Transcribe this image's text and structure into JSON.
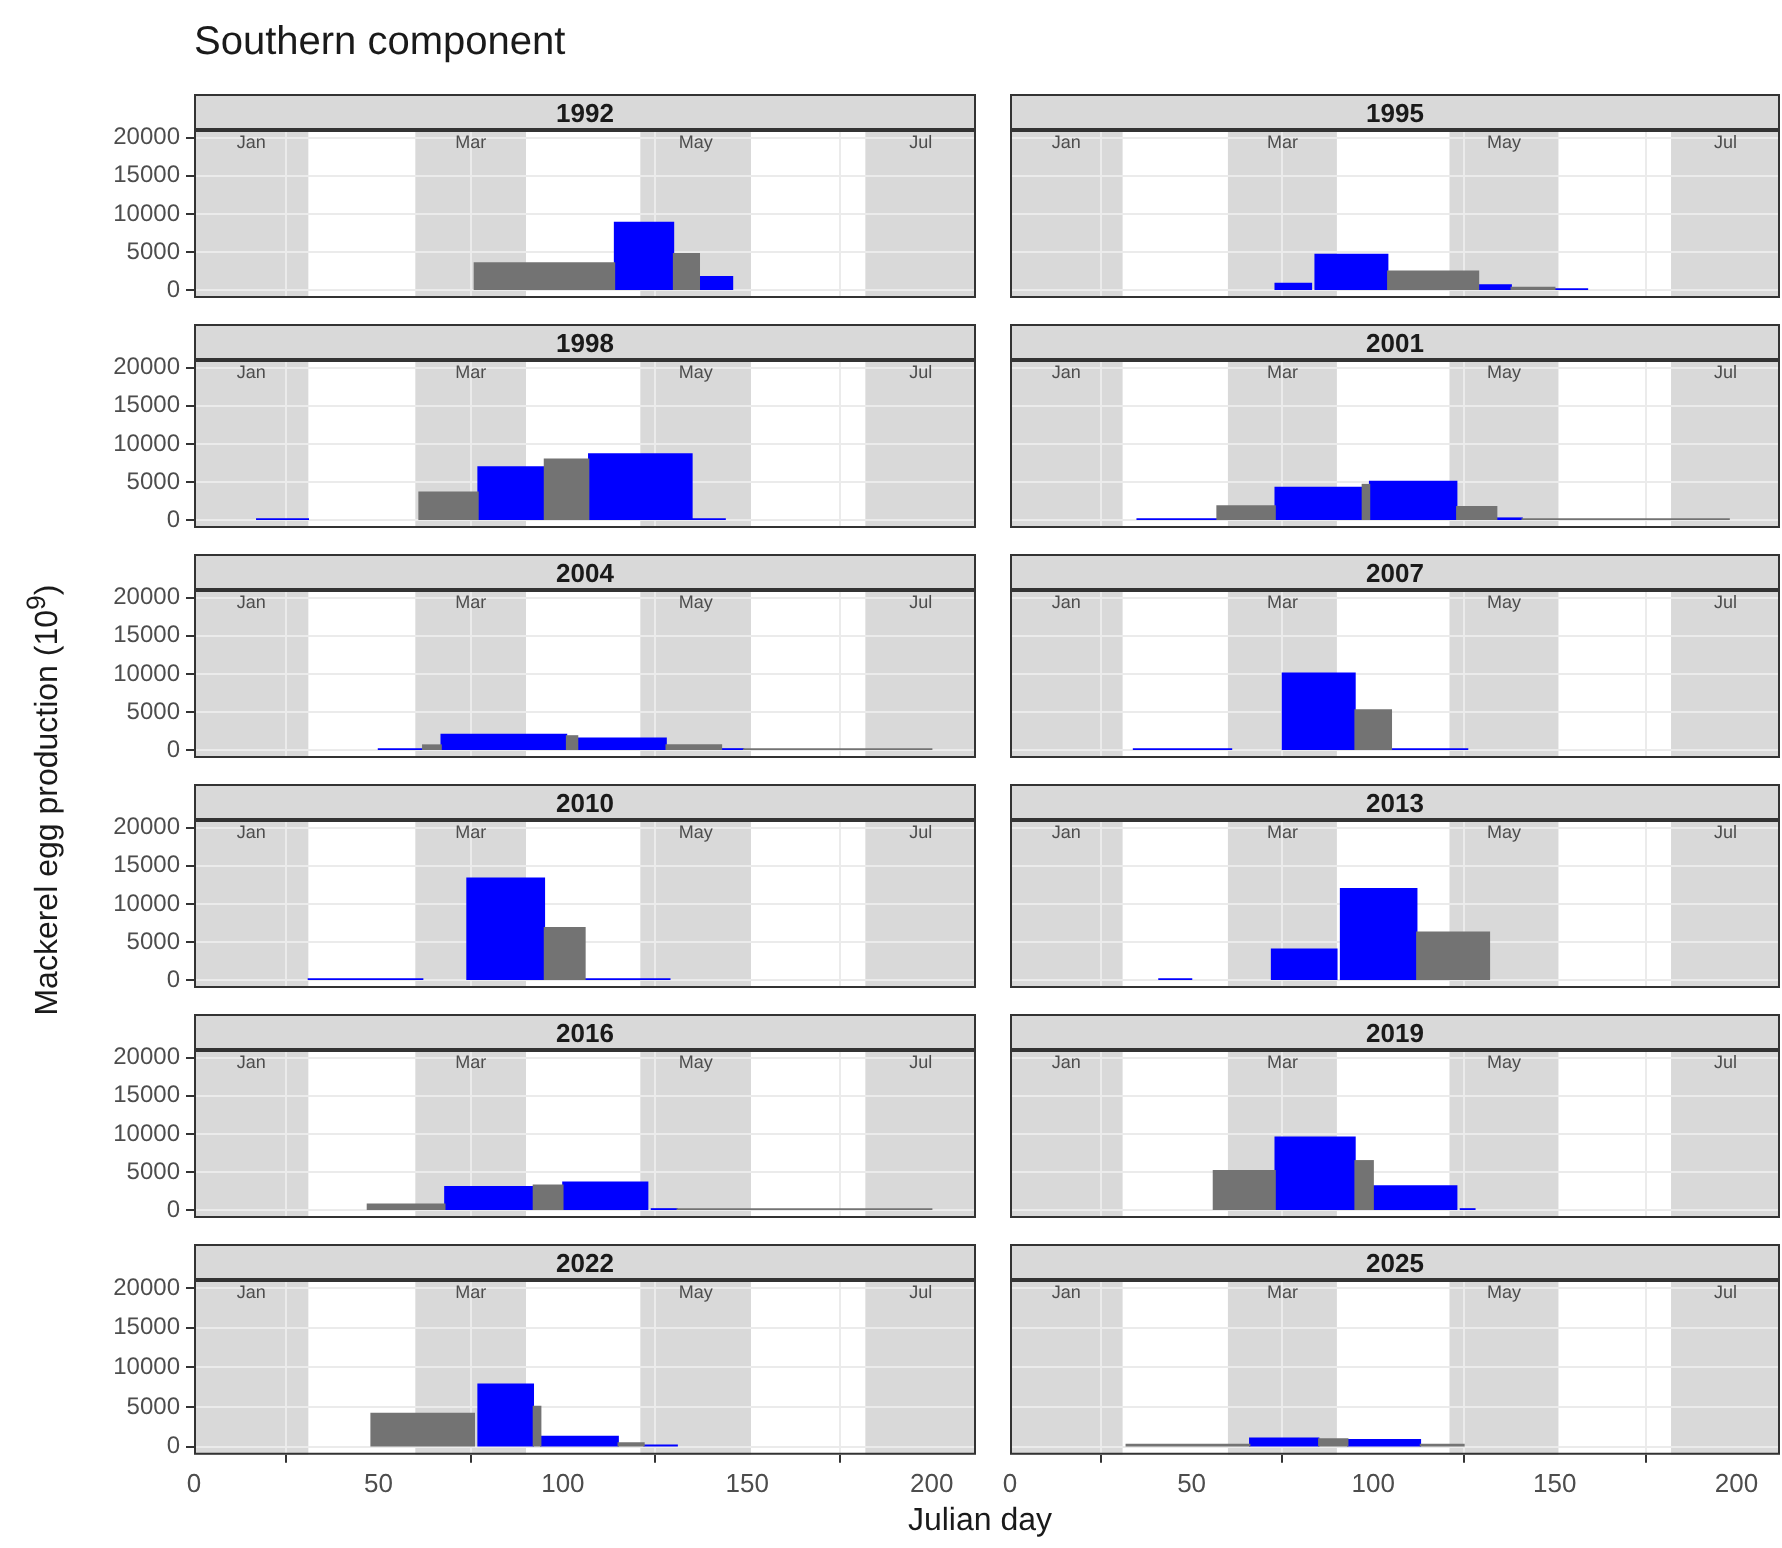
{
  "chart_data": [
    {
      "type": "other",
      "title": "Southern component",
      "xlabel": "Julian day",
      "ylabel": "Mackerel egg production (10$^{9}$)"
    },
    {
      "type": "histogram",
      "title": "1992",
      "tick_labels": "y",
      "grid": true,
      "xlim": [
        0,
        212
      ],
      "xticks": [
        0,
        50,
        100,
        150,
        200
      ],
      "ylim": [
        -1000,
        21000
      ],
      "yticks": [
        0,
        5000,
        10000,
        15000,
        20000
      ],
      "bands": [
        {
          "axis": "x",
          "from": 0,
          "to": 31,
          "label": "Jan",
          "color": "#d9d9d9"
        },
        {
          "axis": "x",
          "from": 60,
          "to": 90,
          "label": "Mar",
          "color": "#d9d9d9"
        },
        {
          "axis": "x",
          "from": 121,
          "to": 151,
          "label": "May",
          "color": "#d9d9d9"
        },
        {
          "axis": "x",
          "from": 182,
          "to": 212,
          "label": "Jul",
          "color": "#d9d9d9"
        }
      ],
      "bins": [
        76,
        114,
        130,
        137,
        146
      ],
      "series": [
        {
          "color": "#737373",
          "values": [
            3600,
            null,
            4800,
            null
          ]
        },
        {
          "color": "#0000ff",
          "values": [
            null,
            8900,
            null,
            1800
          ]
        }
      ]
    },
    {
      "type": "histogram",
      "title": "1995",
      "tick_labels": false,
      "grid": true,
      "xlim": [
        0,
        212
      ],
      "xticks": [
        0,
        50,
        100,
        150,
        200
      ],
      "ylim": [
        -1000,
        21000
      ],
      "yticks": [
        0,
        5000,
        10000,
        15000,
        20000
      ],
      "bands": [
        {
          "axis": "x",
          "from": 0,
          "to": 31,
          "label": "Jan",
          "color": "#d9d9d9"
        },
        {
          "axis": "x",
          "from": 60,
          "to": 90,
          "label": "Mar",
          "color": "#d9d9d9"
        },
        {
          "axis": "x",
          "from": 121,
          "to": 151,
          "label": "May",
          "color": "#d9d9d9"
        },
        {
          "axis": "x",
          "from": 182,
          "to": 212,
          "label": "Jul",
          "color": "#d9d9d9"
        }
      ],
      "bins": [
        73,
        83,
        84,
        104,
        129,
        138,
        150,
        159
      ],
      "series": [
        {
          "color": "#737373",
          "values": [
            null,
            null,
            null,
            2500,
            null,
            400,
            null
          ]
        },
        {
          "color": "#0000ff",
          "values": [
            900,
            null,
            4700,
            null,
            700,
            null,
            200
          ]
        }
      ]
    },
    {
      "type": "histogram",
      "title": "1998",
      "tick_labels": "y",
      "grid": true,
      "xlim": [
        0,
        212
      ],
      "xticks": [
        0,
        50,
        100,
        150,
        200
      ],
      "ylim": [
        -1000,
        21000
      ],
      "yticks": [
        0,
        5000,
        10000,
        15000,
        20000
      ],
      "bands": [
        {
          "axis": "x",
          "from": 0,
          "to": 31,
          "label": "Jan",
          "color": "#d9d9d9"
        },
        {
          "axis": "x",
          "from": 60,
          "to": 90,
          "label": "Mar",
          "color": "#d9d9d9"
        },
        {
          "axis": "x",
          "from": 121,
          "to": 151,
          "label": "May",
          "color": "#d9d9d9"
        },
        {
          "axis": "x",
          "from": 182,
          "to": 212,
          "label": "Jul",
          "color": "#d9d9d9"
        }
      ],
      "bins": [
        17,
        31,
        61,
        77,
        95,
        107,
        135,
        144
      ],
      "series": [
        {
          "color": "#737373",
          "values": [
            null,
            null,
            3700,
            null,
            8000,
            null,
            null
          ]
        },
        {
          "color": "#0000ff",
          "values": [
            200,
            null,
            null,
            7000,
            null,
            8700,
            200
          ]
        }
      ]
    },
    {
      "type": "histogram",
      "title": "2001",
      "tick_labels": false,
      "grid": true,
      "xlim": [
        0,
        212
      ],
      "xticks": [
        0,
        50,
        100,
        150,
        200
      ],
      "ylim": [
        -1000,
        21000
      ],
      "yticks": [
        0,
        5000,
        10000,
        15000,
        20000
      ],
      "bands": [
        {
          "axis": "x",
          "from": 0,
          "to": 31,
          "label": "Jan",
          "color": "#d9d9d9"
        },
        {
          "axis": "x",
          "from": 60,
          "to": 90,
          "label": "Mar",
          "color": "#d9d9d9"
        },
        {
          "axis": "x",
          "from": 121,
          "to": 151,
          "label": "May",
          "color": "#d9d9d9"
        },
        {
          "axis": "x",
          "from": 182,
          "to": 212,
          "label": "Jul",
          "color": "#d9d9d9"
        }
      ],
      "bins": [
        35,
        57,
        73,
        97,
        99,
        123,
        134,
        141,
        198
      ],
      "series": [
        {
          "color": "#737373",
          "values": [
            null,
            1900,
            null,
            4700,
            null,
            1800,
            null,
            200
          ]
        },
        {
          "color": "#0000ff",
          "values": [
            200,
            null,
            4300,
            null,
            5100,
            null,
            300,
            null
          ]
        }
      ]
    },
    {
      "type": "histogram",
      "title": "2004",
      "tick_labels": "y",
      "grid": true,
      "xlim": [
        0,
        212
      ],
      "xticks": [
        0,
        50,
        100,
        150,
        200
      ],
      "ylim": [
        -1000,
        21000
      ],
      "yticks": [
        0,
        5000,
        10000,
        15000,
        20000
      ],
      "bands": [
        {
          "axis": "x",
          "from": 0,
          "to": 31,
          "label": "Jan",
          "color": "#d9d9d9"
        },
        {
          "axis": "x",
          "from": 60,
          "to": 90,
          "label": "Mar",
          "color": "#d9d9d9"
        },
        {
          "axis": "x",
          "from": 121,
          "to": 151,
          "label": "May",
          "color": "#d9d9d9"
        },
        {
          "axis": "x",
          "from": 182,
          "to": 212,
          "label": "Jul",
          "color": "#d9d9d9"
        }
      ],
      "bins": [
        50,
        62,
        67,
        101,
        104,
        128,
        143,
        149,
        200
      ],
      "series": [
        {
          "color": "#737373",
          "values": [
            null,
            700,
            null,
            1900,
            null,
            700,
            null,
            200
          ]
        },
        {
          "color": "#0000ff",
          "values": [
            200,
            null,
            2100,
            null,
            1600,
            null,
            200,
            null
          ]
        }
      ]
    },
    {
      "type": "histogram",
      "title": "2007",
      "tick_labels": false,
      "grid": true,
      "xlim": [
        0,
        212
      ],
      "xticks": [
        0,
        50,
        100,
        150,
        200
      ],
      "ylim": [
        -1000,
        21000
      ],
      "yticks": [
        0,
        5000,
        10000,
        15000,
        20000
      ],
      "bands": [
        {
          "axis": "x",
          "from": 0,
          "to": 31,
          "label": "Jan",
          "color": "#d9d9d9"
        },
        {
          "axis": "x",
          "from": 60,
          "to": 90,
          "label": "Mar",
          "color": "#d9d9d9"
        },
        {
          "axis": "x",
          "from": 121,
          "to": 151,
          "label": "May",
          "color": "#d9d9d9"
        },
        {
          "axis": "x",
          "from": 182,
          "to": 212,
          "label": "Jul",
          "color": "#d9d9d9"
        }
      ],
      "bins": [
        34,
        61,
        75,
        95,
        105,
        126
      ],
      "series": [
        {
          "color": "#737373",
          "values": [
            null,
            null,
            null,
            5300,
            null
          ]
        },
        {
          "color": "#0000ff",
          "values": [
            200,
            null,
            10100,
            null,
            200
          ]
        }
      ]
    },
    {
      "type": "histogram",
      "title": "2010",
      "tick_labels": "y",
      "grid": true,
      "xlim": [
        0,
        212
      ],
      "xticks": [
        0,
        50,
        100,
        150,
        200
      ],
      "ylim": [
        -1000,
        21000
      ],
      "yticks": [
        0,
        5000,
        10000,
        15000,
        20000
      ],
      "bands": [
        {
          "axis": "x",
          "from": 0,
          "to": 31,
          "label": "Jan",
          "color": "#d9d9d9"
        },
        {
          "axis": "x",
          "from": 60,
          "to": 90,
          "label": "Mar",
          "color": "#d9d9d9"
        },
        {
          "axis": "x",
          "from": 121,
          "to": 151,
          "label": "May",
          "color": "#d9d9d9"
        },
        {
          "axis": "x",
          "from": 182,
          "to": 212,
          "label": "Jul",
          "color": "#d9d9d9"
        }
      ],
      "bins": [
        31,
        62,
        74,
        95,
        106,
        129
      ],
      "series": [
        {
          "color": "#737373",
          "values": [
            null,
            null,
            null,
            6900,
            null
          ]
        },
        {
          "color": "#0000ff",
          "values": [
            200,
            null,
            13400,
            null,
            200
          ]
        }
      ]
    },
    {
      "type": "histogram",
      "title": "2013",
      "tick_labels": false,
      "grid": true,
      "xlim": [
        0,
        212
      ],
      "xticks": [
        0,
        50,
        100,
        150,
        200
      ],
      "ylim": [
        -1000,
        21000
      ],
      "yticks": [
        0,
        5000,
        10000,
        15000,
        20000
      ],
      "bands": [
        {
          "axis": "x",
          "from": 0,
          "to": 31,
          "label": "Jan",
          "color": "#d9d9d9"
        },
        {
          "axis": "x",
          "from": 60,
          "to": 90,
          "label": "Mar",
          "color": "#d9d9d9"
        },
        {
          "axis": "x",
          "from": 121,
          "to": 151,
          "label": "May",
          "color": "#d9d9d9"
        },
        {
          "axis": "x",
          "from": 182,
          "to": 212,
          "label": "Jul",
          "color": "#d9d9d9"
        }
      ],
      "bins": [
        41,
        50,
        72,
        90,
        91,
        112,
        132
      ],
      "series": [
        {
          "color": "#737373",
          "values": [
            null,
            null,
            null,
            null,
            null,
            6300
          ]
        },
        {
          "color": "#0000ff",
          "values": [
            200,
            null,
            4100,
            null,
            12000,
            null
          ]
        }
      ]
    },
    {
      "type": "histogram",
      "title": "2016",
      "tick_labels": "y",
      "grid": true,
      "xlim": [
        0,
        212
      ],
      "xticks": [
        0,
        50,
        100,
        150,
        200
      ],
      "ylim": [
        -1000,
        21000
      ],
      "yticks": [
        0,
        5000,
        10000,
        15000,
        20000
      ],
      "bands": [
        {
          "axis": "x",
          "from": 0,
          "to": 31,
          "label": "Jan",
          "color": "#d9d9d9"
        },
        {
          "axis": "x",
          "from": 60,
          "to": 90,
          "label": "Mar",
          "color": "#d9d9d9"
        },
        {
          "axis": "x",
          "from": 121,
          "to": 151,
          "label": "May",
          "color": "#d9d9d9"
        },
        {
          "axis": "x",
          "from": 182,
          "to": 212,
          "label": "Jul",
          "color": "#d9d9d9"
        }
      ],
      "bins": [
        47,
        68,
        92,
        100,
        123,
        124,
        131,
        200
      ],
      "series": [
        {
          "color": "#737373",
          "values": [
            800,
            null,
            3300,
            null,
            null,
            null,
            200
          ]
        },
        {
          "color": "#0000ff",
          "values": [
            null,
            3100,
            null,
            3700,
            null,
            200,
            null
          ]
        }
      ]
    },
    {
      "type": "histogram",
      "title": "2019",
      "tick_labels": false,
      "grid": true,
      "xlim": [
        0,
        212
      ],
      "xticks": [
        0,
        50,
        100,
        150,
        200
      ],
      "ylim": [
        -1000,
        21000
      ],
      "yticks": [
        0,
        5000,
        10000,
        15000,
        20000
      ],
      "bands": [
        {
          "axis": "x",
          "from": 0,
          "to": 31,
          "label": "Jan",
          "color": "#d9d9d9"
        },
        {
          "axis": "x",
          "from": 60,
          "to": 90,
          "label": "Mar",
          "color": "#d9d9d9"
        },
        {
          "axis": "x",
          "from": 121,
          "to": 151,
          "label": "May",
          "color": "#d9d9d9"
        },
        {
          "axis": "x",
          "from": 182,
          "to": 212,
          "label": "Jul",
          "color": "#d9d9d9"
        }
      ],
      "bins": [
        56,
        73,
        95,
        100,
        123,
        124,
        128
      ],
      "series": [
        {
          "color": "#737373",
          "values": [
            5200,
            null,
            6500,
            null,
            null,
            null
          ]
        },
        {
          "color": "#0000ff",
          "values": [
            null,
            9600,
            null,
            3200,
            null,
            200
          ]
        }
      ]
    },
    {
      "type": "histogram",
      "title": "2022",
      "grid": true,
      "xlim": [
        0,
        212
      ],
      "xticks": [
        0,
        50,
        100,
        150,
        200
      ],
      "ylim": [
        -1000,
        21000
      ],
      "yticks": [
        0,
        5000,
        10000,
        15000,
        20000
      ],
      "bands": [
        {
          "axis": "x",
          "from": 0,
          "to": 31,
          "label": "Jan",
          "color": "#d9d9d9"
        },
        {
          "axis": "x",
          "from": 60,
          "to": 90,
          "label": "Mar",
          "color": "#d9d9d9"
        },
        {
          "axis": "x",
          "from": 121,
          "to": 151,
          "label": "May",
          "color": "#d9d9d9"
        },
        {
          "axis": "x",
          "from": 182,
          "to": 212,
          "label": "Jul",
          "color": "#d9d9d9"
        }
      ],
      "bins": [
        48,
        76,
        77,
        92,
        94,
        115,
        122,
        131
      ],
      "series": [
        {
          "color": "#737373",
          "values": [
            4200,
            null,
            null,
            5100,
            null,
            500,
            null
          ]
        },
        {
          "color": "#0000ff",
          "values": [
            null,
            null,
            7900,
            null,
            1300,
            null,
            200
          ]
        }
      ]
    },
    {
      "type": "histogram",
      "title": "2025",
      "tick_labels": "x",
      "grid": true,
      "xlim": [
        0,
        212
      ],
      "xticks": [
        0,
        50,
        100,
        150,
        200
      ],
      "ylim": [
        -1000,
        21000
      ],
      "yticks": [
        0,
        5000,
        10000,
        15000,
        20000
      ],
      "bands": [
        {
          "axis": "x",
          "from": 0,
          "to": 31,
          "label": "Jan",
          "color": "#d9d9d9"
        },
        {
          "axis": "x",
          "from": 60,
          "to": 90,
          "label": "Mar",
          "color": "#d9d9d9"
        },
        {
          "axis": "x",
          "from": 121,
          "to": 151,
          "label": "May",
          "color": "#d9d9d9"
        },
        {
          "axis": "x",
          "from": 182,
          "to": 212,
          "label": "Jul",
          "color": "#d9d9d9"
        }
      ],
      "bins": [
        32,
        66,
        85,
        93,
        113,
        125
      ],
      "series": [
        {
          "color": "#737373",
          "values": [
            300,
            null,
            1000,
            null,
            300
          ]
        },
        {
          "color": "#0000ff",
          "values": [
            null,
            1100,
            null,
            900,
            null
          ]
        }
      ]
    }
  ]
}
